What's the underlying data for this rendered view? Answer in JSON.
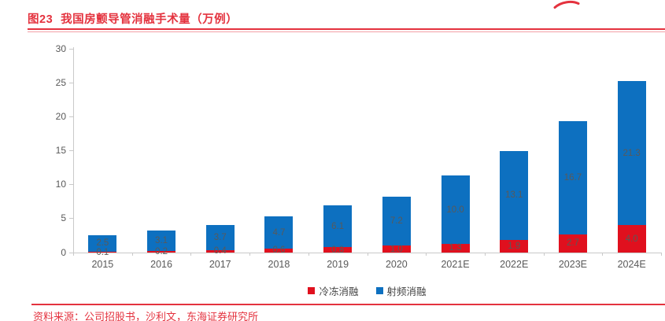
{
  "header": {
    "figure_label": "图23",
    "title": "我国房颤导管消融手术量（万例）"
  },
  "footer": {
    "source": "资料来源：公司招股书，沙利文，东海证券研究所"
  },
  "colors": {
    "accent_red": "#E4323E",
    "bar_red": "#E0101E",
    "bar_blue": "#0D70C0",
    "axis_gray": "#C9C9C9",
    "label_gray": "#595959"
  },
  "chart_data": {
    "type": "bar",
    "stacked": true,
    "title": "我国房颤导管消融手术量（万例）",
    "categories": [
      "2015",
      "2016",
      "2017",
      "2018",
      "2019",
      "2020",
      "2021E",
      "2022E",
      "2023E",
      "2024E"
    ],
    "series": [
      {
        "name": "冷冻消融",
        "color": "#E0101E",
        "values": [
          0.1,
          0.2,
          0.4,
          0.6,
          0.8,
          1.0,
          1.3,
          1.9,
          2.7,
          4.0
        ]
      },
      {
        "name": "射频消融",
        "color": "#0D70C0",
        "values": [
          2.5,
          3.1,
          3.7,
          4.7,
          6.1,
          7.2,
          10.0,
          13.1,
          16.7,
          21.3
        ]
      }
    ],
    "ylim": [
      0,
      30
    ],
    "y_ticks": [
      0,
      5,
      10,
      15,
      20,
      25,
      30
    ],
    "xlabel": "",
    "ylabel": "",
    "grid": false,
    "data_labels": true,
    "legend_position": "bottom"
  }
}
